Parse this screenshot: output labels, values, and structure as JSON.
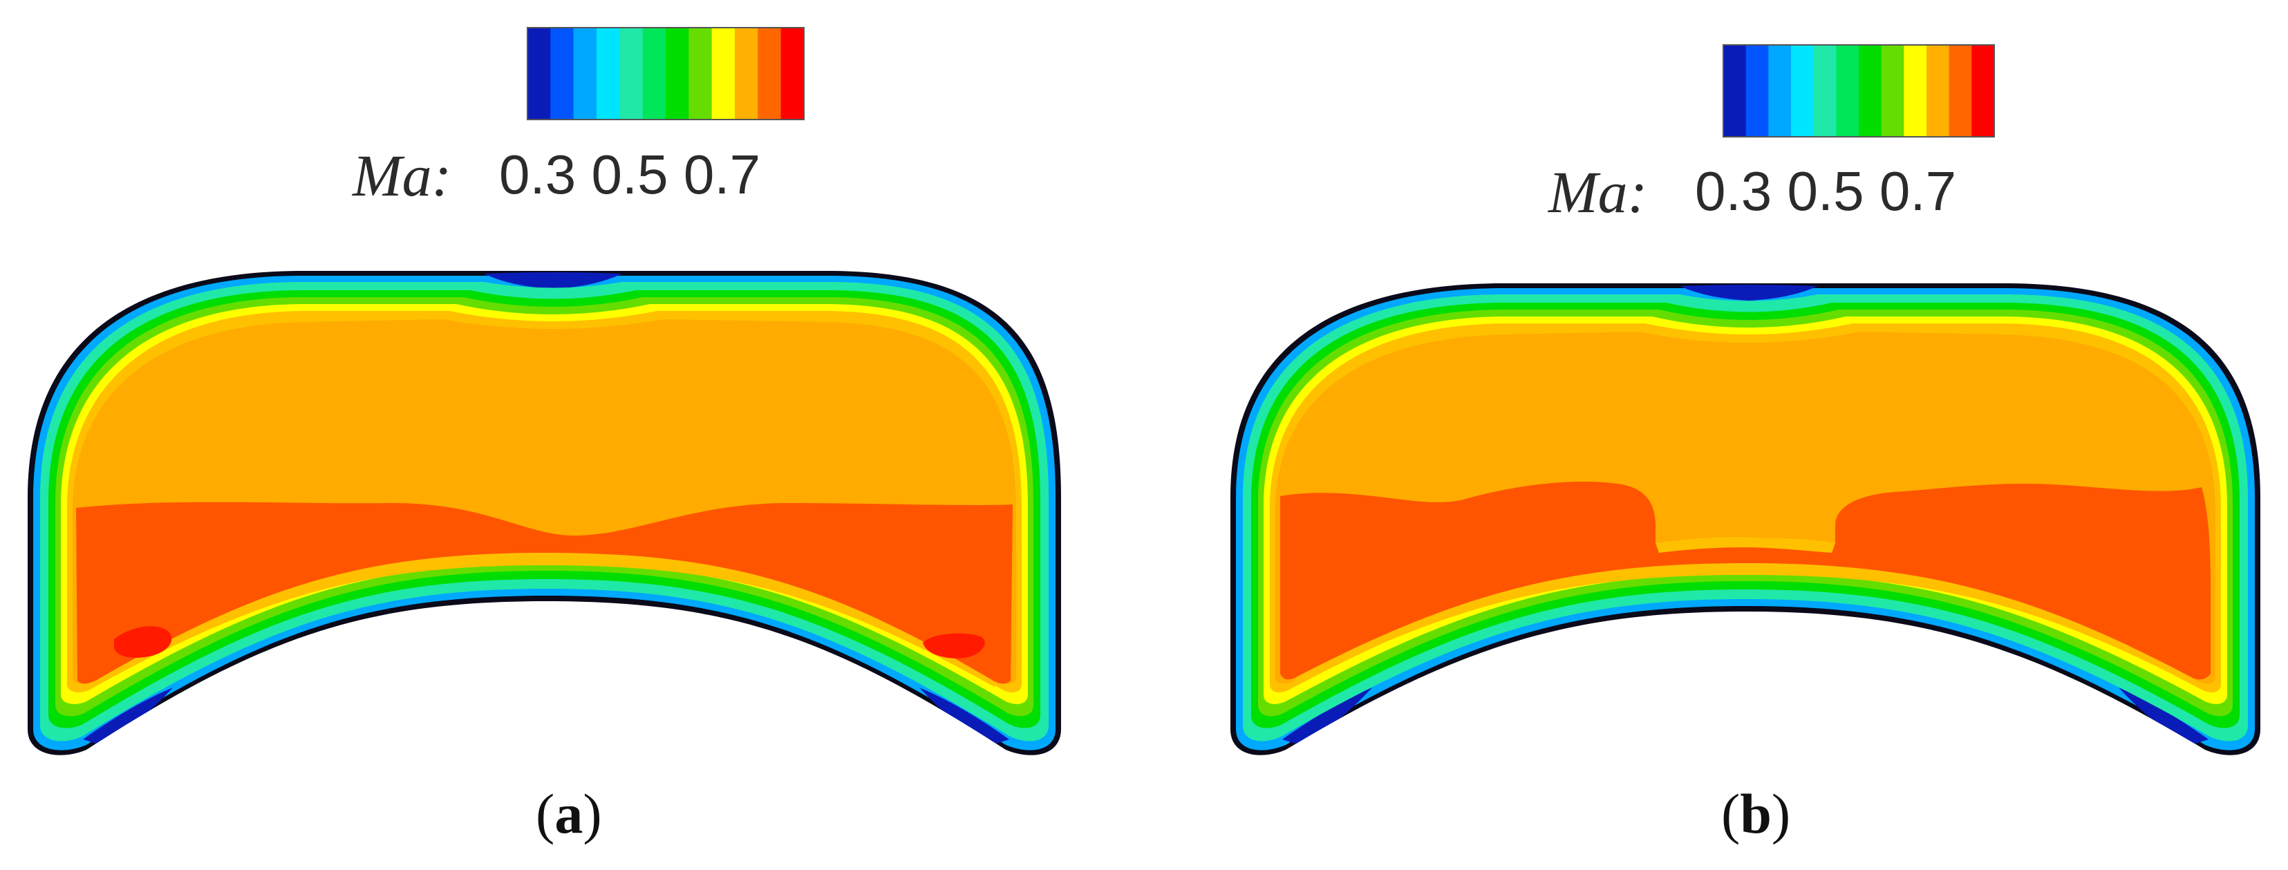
{
  "colors": {
    "colormap": [
      "#0a1cb8",
      "#0055ff",
      "#00a8ff",
      "#00e5ff",
      "#20e8a8",
      "#00e65a",
      "#00dd00",
      "#66dd00",
      "#ffff00",
      "#ffb000",
      "#ff6600",
      "#ff0000"
    ],
    "wall": "#0a0a1a",
    "orange_core": "#ffab00",
    "red_orange_core": "#ff5500",
    "red_spot": "#ff1a00"
  },
  "panels": [
    {
      "legend": {
        "variable_label": "Ma:",
        "tick_labels": "0.3 0.5 0.7"
      },
      "caption": {
        "open": "(",
        "letter": "a",
        "close": ")"
      },
      "region_names": [
        "outer-wall",
        "green-layer",
        "yellow-layer",
        "orange-core",
        "red-orange-core",
        "red-spot-left",
        "red-spot-right"
      ]
    },
    {
      "legend": {
        "variable_label": "Ma:",
        "tick_labels": "0.3 0.5 0.7"
      },
      "caption": {
        "open": "(",
        "letter": "b",
        "close": ")"
      },
      "region_names": [
        "outer-wall",
        "green-layer",
        "yellow-layer",
        "orange-core",
        "red-orange-core"
      ]
    }
  ]
}
